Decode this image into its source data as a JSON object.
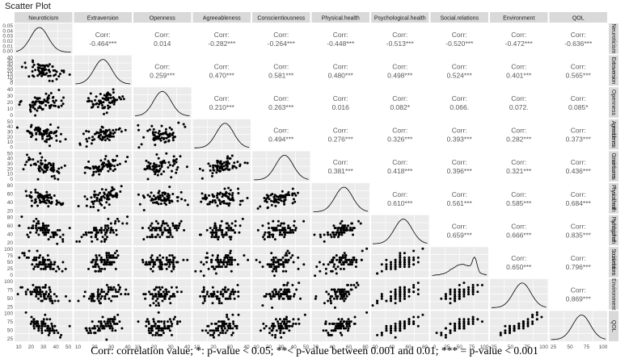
{
  "chart_data": {
    "type": "scatter",
    "title": "Scatter Plot",
    "variables": [
      "Neuroticism",
      "Extraversion",
      "Openness",
      "Agreeableness",
      "Conscientiousness",
      "Physical.health",
      "Psychological.health",
      "Social.relations",
      "Environment",
      "QOL"
    ],
    "row_strip_labels": [
      "Neuroticism",
      "Extraversion",
      "Openness",
      "Agreeableness",
      "Conscientiousness",
      "Physical.health",
      "Psychological.health",
      "Social.relations",
      "Environment",
      "QOL"
    ],
    "corr_label": "Corr:",
    "correlations": [
      [
        null,
        "-0.464***",
        "0.014",
        "-0.282***",
        "-0.264***",
        "-0.448***",
        "-0.513***",
        "-0.520***",
        "-0.472***",
        "-0.636***"
      ],
      [
        null,
        null,
        "0.259***",
        "0.470***",
        "0.581***",
        "0.480***",
        "0.498***",
        "0.524***",
        "0.401***",
        "0.565***"
      ],
      [
        null,
        null,
        null,
        "0.210***",
        "0.263***",
        "0.016",
        "0.082*",
        "0.066.",
        "0.072.",
        "0.085*"
      ],
      [
        null,
        null,
        null,
        null,
        "0.494***",
        "0.276***",
        "0.326***",
        "0.393***",
        "0.282***",
        "0.373***"
      ],
      [
        null,
        null,
        null,
        null,
        null,
        "0.381***",
        "0.418***",
        "0.396***",
        "0.321***",
        "0.436***"
      ],
      [
        null,
        null,
        null,
        null,
        null,
        null,
        "0.610***",
        "0.561***",
        "0.585***",
        "0.684***"
      ],
      [
        null,
        null,
        null,
        null,
        null,
        null,
        null,
        "0.659***",
        "0.666***",
        "0.835***"
      ],
      [
        null,
        null,
        null,
        null,
        null,
        null,
        null,
        null,
        "0.650***",
        "0.796***"
      ],
      [
        null,
        null,
        null,
        null,
        null,
        null,
        null,
        null,
        null,
        "0.869***"
      ],
      [
        null,
        null,
        null,
        null,
        null,
        null,
        null,
        null,
        null,
        null
      ]
    ],
    "ranges": [
      [
        5,
        50
      ],
      [
        2,
        45
      ],
      [
        5,
        45
      ],
      [
        5,
        50
      ],
      [
        2,
        50
      ],
      [
        10,
        90
      ],
      [
        15,
        90
      ],
      [
        0,
        100
      ],
      [
        15,
        100
      ],
      [
        10,
        100
      ]
    ],
    "y_tick_labels": [
      [
        "0.05",
        "0.04",
        "0.03",
        "0.02",
        "0.01",
        "0.00"
      ],
      [
        "40",
        "35",
        "30",
        "25",
        "20",
        "15",
        "10",
        "5",
        "0"
      ],
      [
        "40",
        "30",
        "20",
        "10",
        "0"
      ],
      [
        "50",
        "40",
        "30",
        "20",
        "10",
        "0"
      ],
      [
        "50",
        "40",
        "30",
        "20",
        "10",
        "0"
      ],
      [
        "80",
        "60",
        "40",
        "20"
      ],
      [
        "80",
        "60",
        "40",
        "20"
      ],
      [
        "100",
        "75",
        "50",
        "25",
        "0"
      ],
      [
        "100",
        "75",
        "50",
        "25"
      ],
      [
        "100",
        "75",
        "50",
        "25"
      ]
    ],
    "x_tick_labels": [
      [
        "10",
        "20",
        "30",
        "40",
        "50"
      ],
      [
        "10",
        "20",
        "30",
        "40"
      ],
      [
        "10",
        "20",
        "30",
        "40"
      ],
      [
        "10",
        "20",
        "30",
        "40"
      ],
      [
        "10",
        "20",
        "30",
        "40",
        "50"
      ],
      [
        "20",
        "40",
        "60",
        "80"
      ],
      [
        "20",
        "40",
        "60",
        "80"
      ],
      [
        "0",
        "25",
        "50",
        "75",
        "100"
      ],
      [
        "25",
        "50",
        "75",
        "100"
      ],
      [
        "25",
        "50",
        "75",
        "100"
      ]
    ]
  },
  "caption": "Corr: correlation value; *: p-value < 0.05; **< p-value between 0.001 and 0.01; *** = p-value < 0.001"
}
